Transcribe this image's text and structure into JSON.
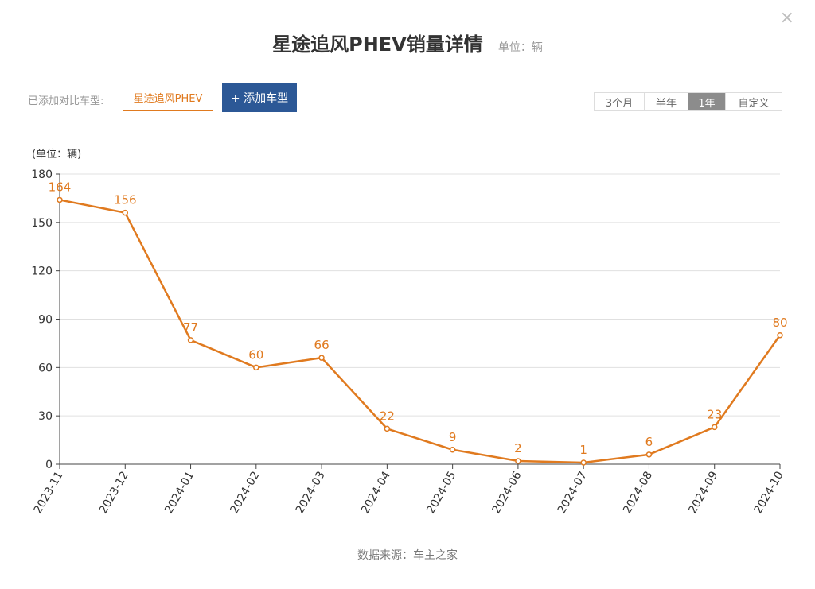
{
  "close_icon": "×",
  "title": "星途追风PHEV销量详情",
  "title_unit": "单位：辆",
  "compare": {
    "label": "已添加对比车型:",
    "car": "星途追风PHEV",
    "add_button": "+ 添加车型"
  },
  "range_tabs": [
    {
      "label": "3个月",
      "active": false
    },
    {
      "label": "半年",
      "active": false
    },
    {
      "label": "1年",
      "active": true
    },
    {
      "label": "自定义",
      "active": false
    }
  ],
  "source": "数据来源：车主之家",
  "colors": {
    "line": "#e07a1f",
    "accent": "#2c5896",
    "grid": "#e0e0e0"
  },
  "chart_data": {
    "type": "line",
    "y_unit_label": "(单位：辆)",
    "x": [
      "2023-11",
      "2023-12",
      "2024-01",
      "2024-02",
      "2024-03",
      "2024-04",
      "2024-05",
      "2024-06",
      "2024-07",
      "2024-08",
      "2024-09",
      "2024-10"
    ],
    "values": [
      164,
      156,
      77,
      60,
      66,
      22,
      9,
      2,
      1,
      6,
      23,
      80
    ],
    "ylim": [
      0,
      180
    ],
    "yticks": [
      0,
      30,
      60,
      90,
      120,
      150,
      180
    ],
    "grid": true
  }
}
